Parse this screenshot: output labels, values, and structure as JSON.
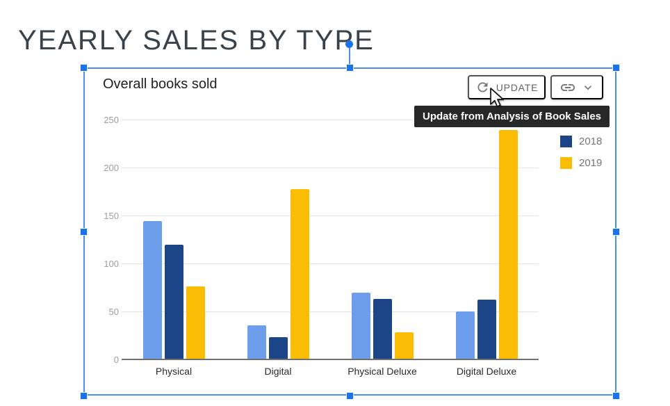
{
  "page": {
    "title": "YEARLY SALES BY TYPE"
  },
  "chart": {
    "title": "Overall books sold",
    "toolbar": {
      "update_label": "UPDATE",
      "icons": {
        "refresh": "refresh-icon",
        "link": "link-icon",
        "chevron": "chevron-down-icon"
      }
    },
    "tooltip_text": "Update from Analysis of Book Sales",
    "legend_entries": [
      {
        "label": "2018",
        "color": "#1c4587"
      },
      {
        "label": "2019",
        "color": "#fbbc04"
      }
    ]
  },
  "chart_data": {
    "type": "bar",
    "title": "Overall books sold",
    "categories": [
      "Physical",
      "Digital",
      "Physical Deluxe",
      "Digital Deluxe"
    ],
    "series": [
      {
        "name": "",
        "legend_visible": false,
        "color": "#6d9eeb",
        "values": [
          145,
          36,
          70,
          51
        ]
      },
      {
        "name": "2018",
        "legend_visible": true,
        "color": "#1c4587",
        "values": [
          120,
          24,
          64,
          63
        ]
      },
      {
        "name": "2019",
        "legend_visible": true,
        "color": "#fbbc04",
        "values": [
          77,
          178,
          29,
          240
        ]
      }
    ],
    "ylim": [
      0,
      250
    ],
    "yticks": [
      0,
      50,
      100,
      150,
      200,
      250
    ],
    "grid": true,
    "legend_position": "right"
  },
  "colors": {
    "selection_accent": "#4c8bf5",
    "handle_fill": "#1a73e8",
    "tooltip_background": "#282828",
    "tooltip_text": "#ffffff",
    "button_text": "#5f6368",
    "icon_gray": "#757575",
    "axis_tick_text": "#9e9e9e",
    "gridline": "#e3e3e3",
    "baseline": "#6f6f6f"
  }
}
